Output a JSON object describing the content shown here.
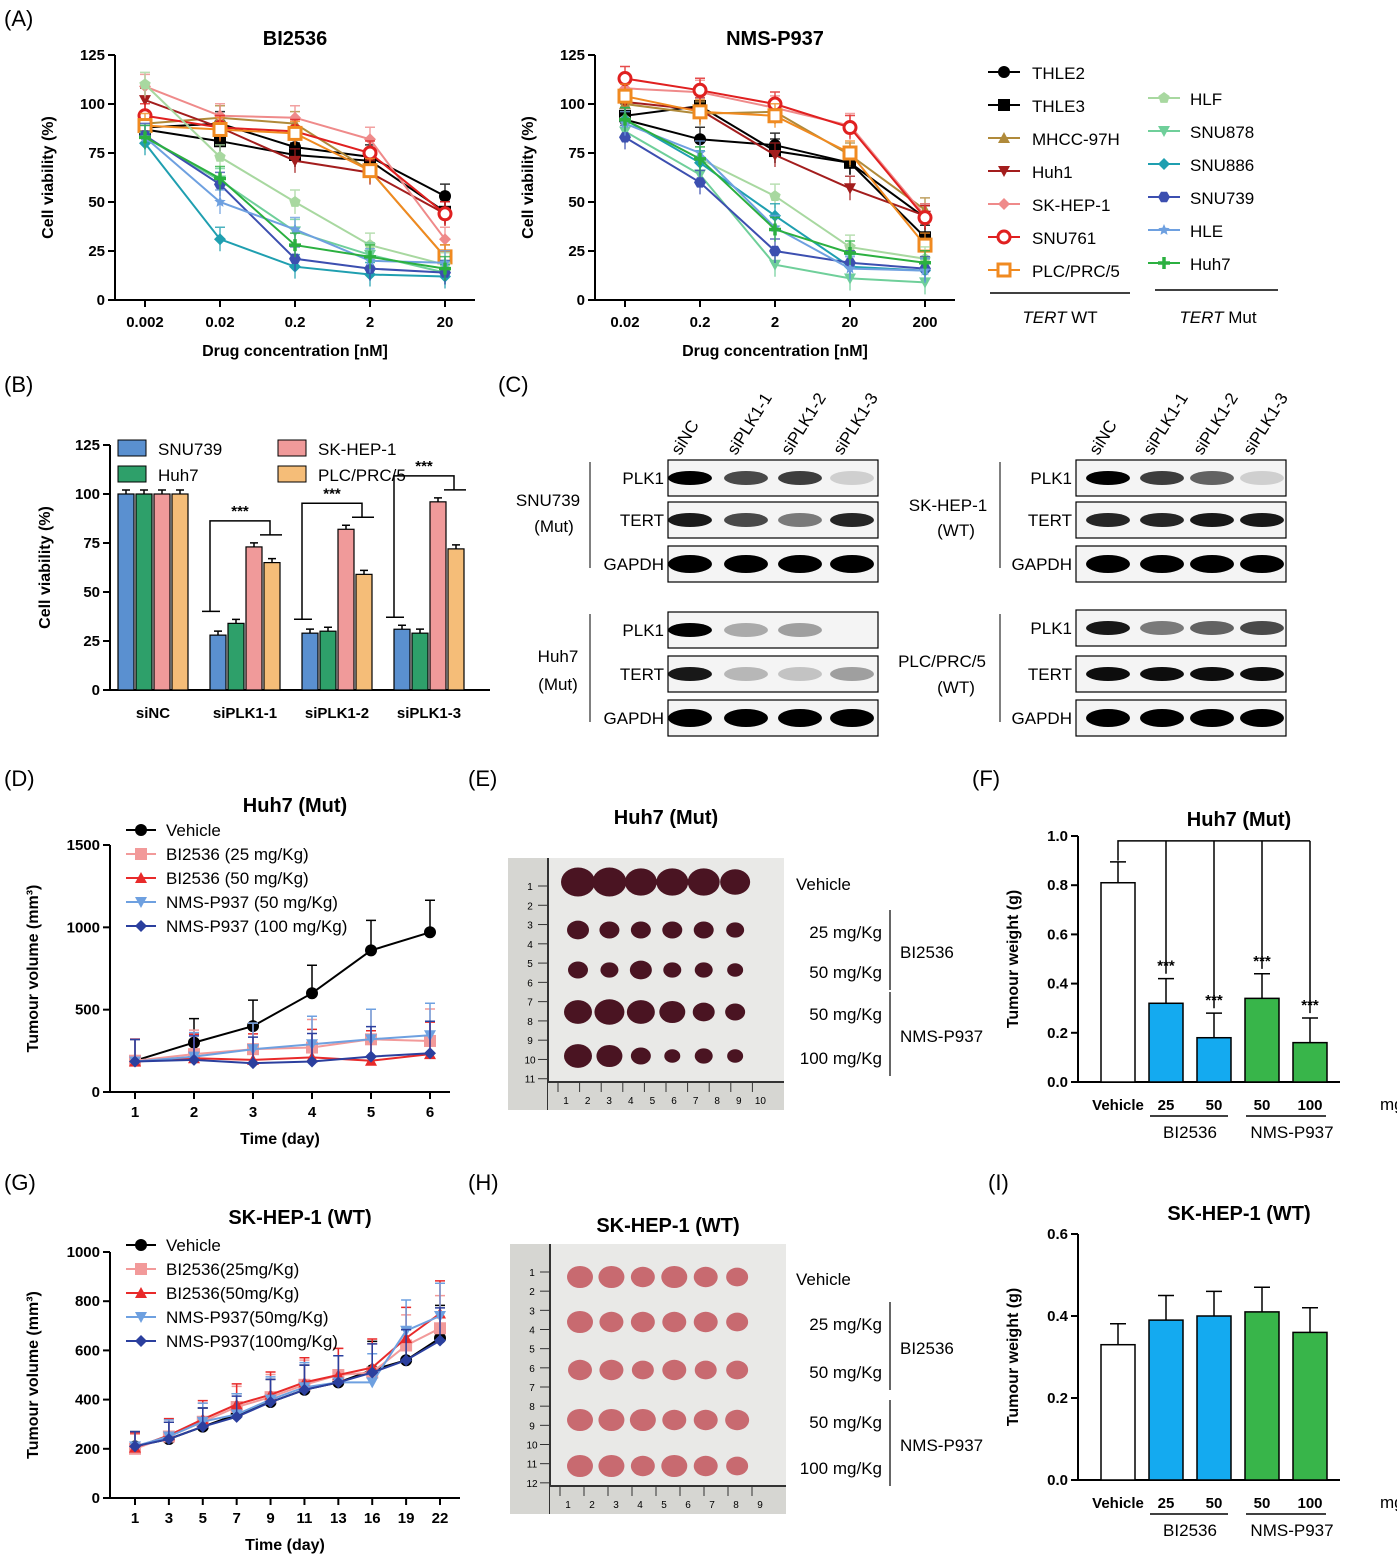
{
  "panel_labels": {
    "a": "(A)",
    "b": "(B)",
    "c": "(C)",
    "d": "(D)",
    "e": "(E)",
    "f": "(F)",
    "g": "(G)",
    "h": "(H)",
    "i": "(I)"
  },
  "colors": {
    "THLE2": "#000000",
    "THLE3": "#000000",
    "MHCC-97H": "#b08a3a",
    "Huh1": "#a31d1d",
    "SK-HEP-1": "#ef8a8a",
    "SNU761": "#e02020",
    "PLC/PRC/5": "#f08a20",
    "HLF": "#a8d8a0",
    "SNU878": "#6fcf9a",
    "SNU886": "#1f9fb0",
    "SNU739": "#3c4fb0",
    "HLE": "#6ea0e0",
    "Huh7": "#2bb040",
    "bar_blue": "#5a90d0",
    "bar_green": "#2ea06a",
    "bar_pink": "#f09a9a",
    "bar_orange": "#f5bd78",
    "w_blue": "#14aaf0",
    "w_green": "#38b54a"
  },
  "legend_a": {
    "wt": [
      "THLE2",
      "THLE3",
      "MHCC-97H",
      "Huh1",
      "SK-HEP-1",
      "SNU761",
      "PLC/PRC/5"
    ],
    "mut": [
      "HLF",
      "SNU878",
      "SNU886",
      "SNU739",
      "HLE",
      "Huh7"
    ],
    "wt_caption_italic": "TERT",
    "wt_caption_rest": " WT",
    "mut_caption_italic": "TERT",
    "mut_caption_rest": " Mut"
  },
  "chart_data": [
    {
      "id": "A1",
      "type": "line",
      "title": "BI2536",
      "xlabel": "Drug concentration [nM]",
      "ylabel": "Cell viability (%)",
      "categories": [
        "0.002",
        "0.02",
        "0.2",
        "2",
        "20"
      ],
      "ylim": [
        0,
        125
      ],
      "yticks": [
        0,
        25,
        50,
        75,
        100,
        125
      ],
      "series": [
        {
          "name": "THLE2",
          "values": [
            88,
            90,
            78,
            73,
            53
          ]
        },
        {
          "name": "THLE3",
          "values": [
            87,
            81,
            74,
            71,
            45
          ]
        },
        {
          "name": "MHCC-97H",
          "values": [
            90,
            93,
            90,
            66,
            22
          ]
        },
        {
          "name": "Huh1",
          "values": [
            102,
            88,
            71,
            65,
            44
          ]
        },
        {
          "name": "SK-HEP-1",
          "values": [
            109,
            94,
            93,
            82,
            31
          ]
        },
        {
          "name": "SNU761",
          "values": [
            94,
            88,
            86,
            75,
            44
          ]
        },
        {
          "name": "PLC/PRC/5",
          "values": [
            89,
            87,
            85,
            66,
            22
          ]
        },
        {
          "name": "HLF",
          "values": [
            110,
            73,
            50,
            28,
            18
          ]
        },
        {
          "name": "SNU878",
          "values": [
            83,
            61,
            35,
            23,
            14
          ]
        },
        {
          "name": "SNU886",
          "values": [
            80,
            31,
            17,
            13,
            12
          ]
        },
        {
          "name": "SNU739",
          "values": [
            84,
            59,
            21,
            16,
            14
          ]
        },
        {
          "name": "HLE",
          "values": [
            83,
            50,
            36,
            20,
            19
          ]
        },
        {
          "name": "Huh7",
          "values": [
            83,
            62,
            28,
            22,
            16
          ]
        }
      ]
    },
    {
      "id": "A2",
      "type": "line",
      "title": "NMS-P937",
      "xlabel": "Drug concentration [nM]",
      "ylabel": "Cell viability (%)",
      "categories": [
        "0.02",
        "0.2",
        "2",
        "20",
        "200"
      ],
      "ylim": [
        0,
        125
      ],
      "yticks": [
        0,
        25,
        50,
        75,
        100,
        125
      ],
      "series": [
        {
          "name": "THLE2",
          "values": [
            92,
            82,
            79,
            70,
            42
          ]
        },
        {
          "name": "THLE3",
          "values": [
            94,
            99,
            76,
            70,
            32
          ]
        },
        {
          "name": "MHCC-97H",
          "values": [
            100,
            95,
            96,
            74,
            46
          ]
        },
        {
          "name": "Huh1",
          "values": [
            101,
            97,
            74,
            57,
            43
          ]
        },
        {
          "name": "SK-HEP-1",
          "values": [
            108,
            106,
            98,
            89,
            43
          ]
        },
        {
          "name": "SNU761",
          "values": [
            113,
            107,
            100,
            88,
            42
          ]
        },
        {
          "name": "PLC/PRC/5",
          "values": [
            104,
            96,
            94,
            75,
            28
          ]
        },
        {
          "name": "HLF",
          "values": [
            92,
            72,
            53,
            27,
            21
          ]
        },
        {
          "name": "SNU878",
          "values": [
            86,
            64,
            18,
            11,
            9
          ]
        },
        {
          "name": "SNU886",
          "values": [
            92,
            70,
            43,
            17,
            15
          ]
        },
        {
          "name": "SNU739",
          "values": [
            83,
            60,
            25,
            19,
            16
          ]
        },
        {
          "name": "HLE",
          "values": [
            90,
            75,
            37,
            16,
            15
          ]
        },
        {
          "name": "Huh7",
          "values": [
            92,
            72,
            36,
            24,
            19
          ]
        }
      ]
    },
    {
      "id": "B",
      "type": "bar",
      "xlabel": "",
      "ylabel": "Cell viability (%)",
      "categories": [
        "siNC",
        "siPLK1-1",
        "siPLK1-2",
        "siPLK1-3"
      ],
      "ylim": [
        0,
        125
      ],
      "yticks": [
        0,
        25,
        50,
        75,
        100,
        125
      ],
      "series": [
        {
          "name": "SNU739",
          "values": [
            100,
            28,
            29,
            31
          ]
        },
        {
          "name": "Huh7",
          "values": [
            100,
            34,
            30,
            29
          ]
        },
        {
          "name": "SK-HEP-1",
          "values": [
            100,
            73,
            82,
            96
          ]
        },
        {
          "name": "PLC/PRC/5",
          "values": [
            100,
            65,
            59,
            72
          ]
        }
      ],
      "significance": [
        "***",
        "***",
        "***"
      ]
    },
    {
      "id": "D",
      "type": "line",
      "title": "Huh7 (Mut)",
      "xlabel": "Time (day)",
      "ylabel": "Tumour volume (mm³)",
      "x": [
        "1",
        "2",
        "3",
        "4",
        "5",
        "6"
      ],
      "ylim": [
        0,
        1500
      ],
      "yticks": [
        0,
        500,
        1000,
        1500
      ],
      "series": [
        {
          "name": "Vehicle",
          "values": [
            190,
            300,
            400,
            600,
            860,
            970
          ]
        },
        {
          "name": "BI2536 (25 mg/Kg)",
          "values": [
            190,
            230,
            260,
            270,
            320,
            310
          ]
        },
        {
          "name": "BI2536 (50 mg/Kg)",
          "values": [
            185,
            205,
            195,
            210,
            190,
            230
          ]
        },
        {
          "name": "NMS-P937 (50 mg/Kg)",
          "values": [
            185,
            215,
            260,
            290,
            320,
            345
          ]
        },
        {
          "name": "NMS-P937 (100 mg/Kg)",
          "values": [
            185,
            195,
            175,
            185,
            215,
            235
          ]
        }
      ]
    },
    {
      "id": "F",
      "type": "bar",
      "title": "Huh7 (Mut)",
      "ylabel": "Tumour weight (g)",
      "unit": "mg/Kg",
      "categories": [
        "Vehicle",
        "25",
        "50",
        "50",
        "100"
      ],
      "groups": [
        "BI2536",
        "NMS-P937"
      ],
      "ylim": [
        0,
        1.0
      ],
      "yticks": [
        "0.0",
        "0.2",
        "0.4",
        "0.6",
        "0.8",
        "1.0"
      ],
      "values": [
        0.81,
        0.32,
        0.18,
        0.34,
        0.16
      ],
      "significance": [
        "",
        "***",
        "***",
        "***",
        "***"
      ]
    },
    {
      "id": "G",
      "type": "line",
      "title": "SK-HEP-1 (WT)",
      "xlabel": "Time (day)",
      "ylabel": "Tumour volume (mm³)",
      "x": [
        "1",
        "3",
        "5",
        "7",
        "9",
        "11",
        "13",
        "16",
        "19",
        "22"
      ],
      "ylim": [
        0,
        1000
      ],
      "yticks": [
        0,
        200,
        400,
        600,
        800,
        1000
      ],
      "series": [
        {
          "name": "Vehicle",
          "values": [
            210,
            240,
            290,
            340,
            390,
            440,
            470,
            520,
            560,
            650
          ]
        },
        {
          "name": "BI2536(25mg/Kg)",
          "values": [
            200,
            250,
            310,
            370,
            410,
            460,
            500,
            510,
            620,
            690
          ]
        },
        {
          "name": "BI2536(50mg/Kg)",
          "values": [
            205,
            255,
            320,
            380,
            420,
            470,
            500,
            530,
            650,
            750
          ]
        },
        {
          "name": "NMS-P937(50mg/Kg)",
          "values": [
            210,
            250,
            310,
            340,
            400,
            450,
            470,
            470,
            680,
            740
          ]
        },
        {
          "name": "NMS-P937(100mg/Kg)",
          "values": [
            210,
            240,
            290,
            330,
            390,
            440,
            470,
            510,
            560,
            640
          ]
        }
      ]
    },
    {
      "id": "I",
      "type": "bar",
      "title": "SK-HEP-1 (WT)",
      "ylabel": "Tumour weight (g)",
      "unit": "mg/Kg",
      "categories": [
        "Vehicle",
        "25",
        "50",
        "50",
        "100"
      ],
      "groups": [
        "BI2536",
        "NMS-P937"
      ],
      "ylim": [
        0,
        0.6
      ],
      "yticks": [
        "0.0",
        "0.2",
        "0.4",
        "0.6"
      ],
      "values": [
        0.33,
        0.39,
        0.4,
        0.41,
        0.36
      ]
    }
  ],
  "blots": {
    "lanes": [
      "siNC",
      "siPLK1-1",
      "siPLK1-2",
      "siPLK1-3"
    ],
    "rows": [
      "PLK1",
      "TERT",
      "GAPDH"
    ],
    "left": [
      {
        "name": "SNU739",
        "sub": "(Mut)"
      },
      {
        "name": "Huh7",
        "sub": "(Mut)"
      }
    ],
    "right": [
      {
        "name": "SK-HEP-1",
        "sub": "(WT)"
      },
      {
        "name": "PLC/PRC/5",
        "sub": "(WT)"
      }
    ]
  },
  "photos": {
    "e_title": "Huh7 (Mut)",
    "h_title": "SK-HEP-1 (WT)",
    "rows": [
      "Vehicle",
      "25 mg/Kg",
      "50 mg/Kg",
      "50 mg/Kg",
      "100 mg/Kg"
    ],
    "groups": [
      "BI2536",
      "NMS-P937"
    ],
    "ruler_e": [
      "1",
      "2",
      "3",
      "4",
      "5",
      "6",
      "7",
      "8",
      "9",
      "10",
      "11"
    ],
    "ruler_h": [
      "1",
      "2",
      "3",
      "4",
      "5",
      "6",
      "7",
      "8",
      "9",
      "10",
      "11",
      "12"
    ],
    "ruler_bottom_e": [
      "1",
      "2",
      "3",
      "4",
      "5",
      "6",
      "7",
      "8",
      "9",
      "10"
    ],
    "ruler_bottom_h": [
      "1",
      "2",
      "3",
      "4",
      "5",
      "6",
      "7",
      "8",
      "9"
    ]
  }
}
